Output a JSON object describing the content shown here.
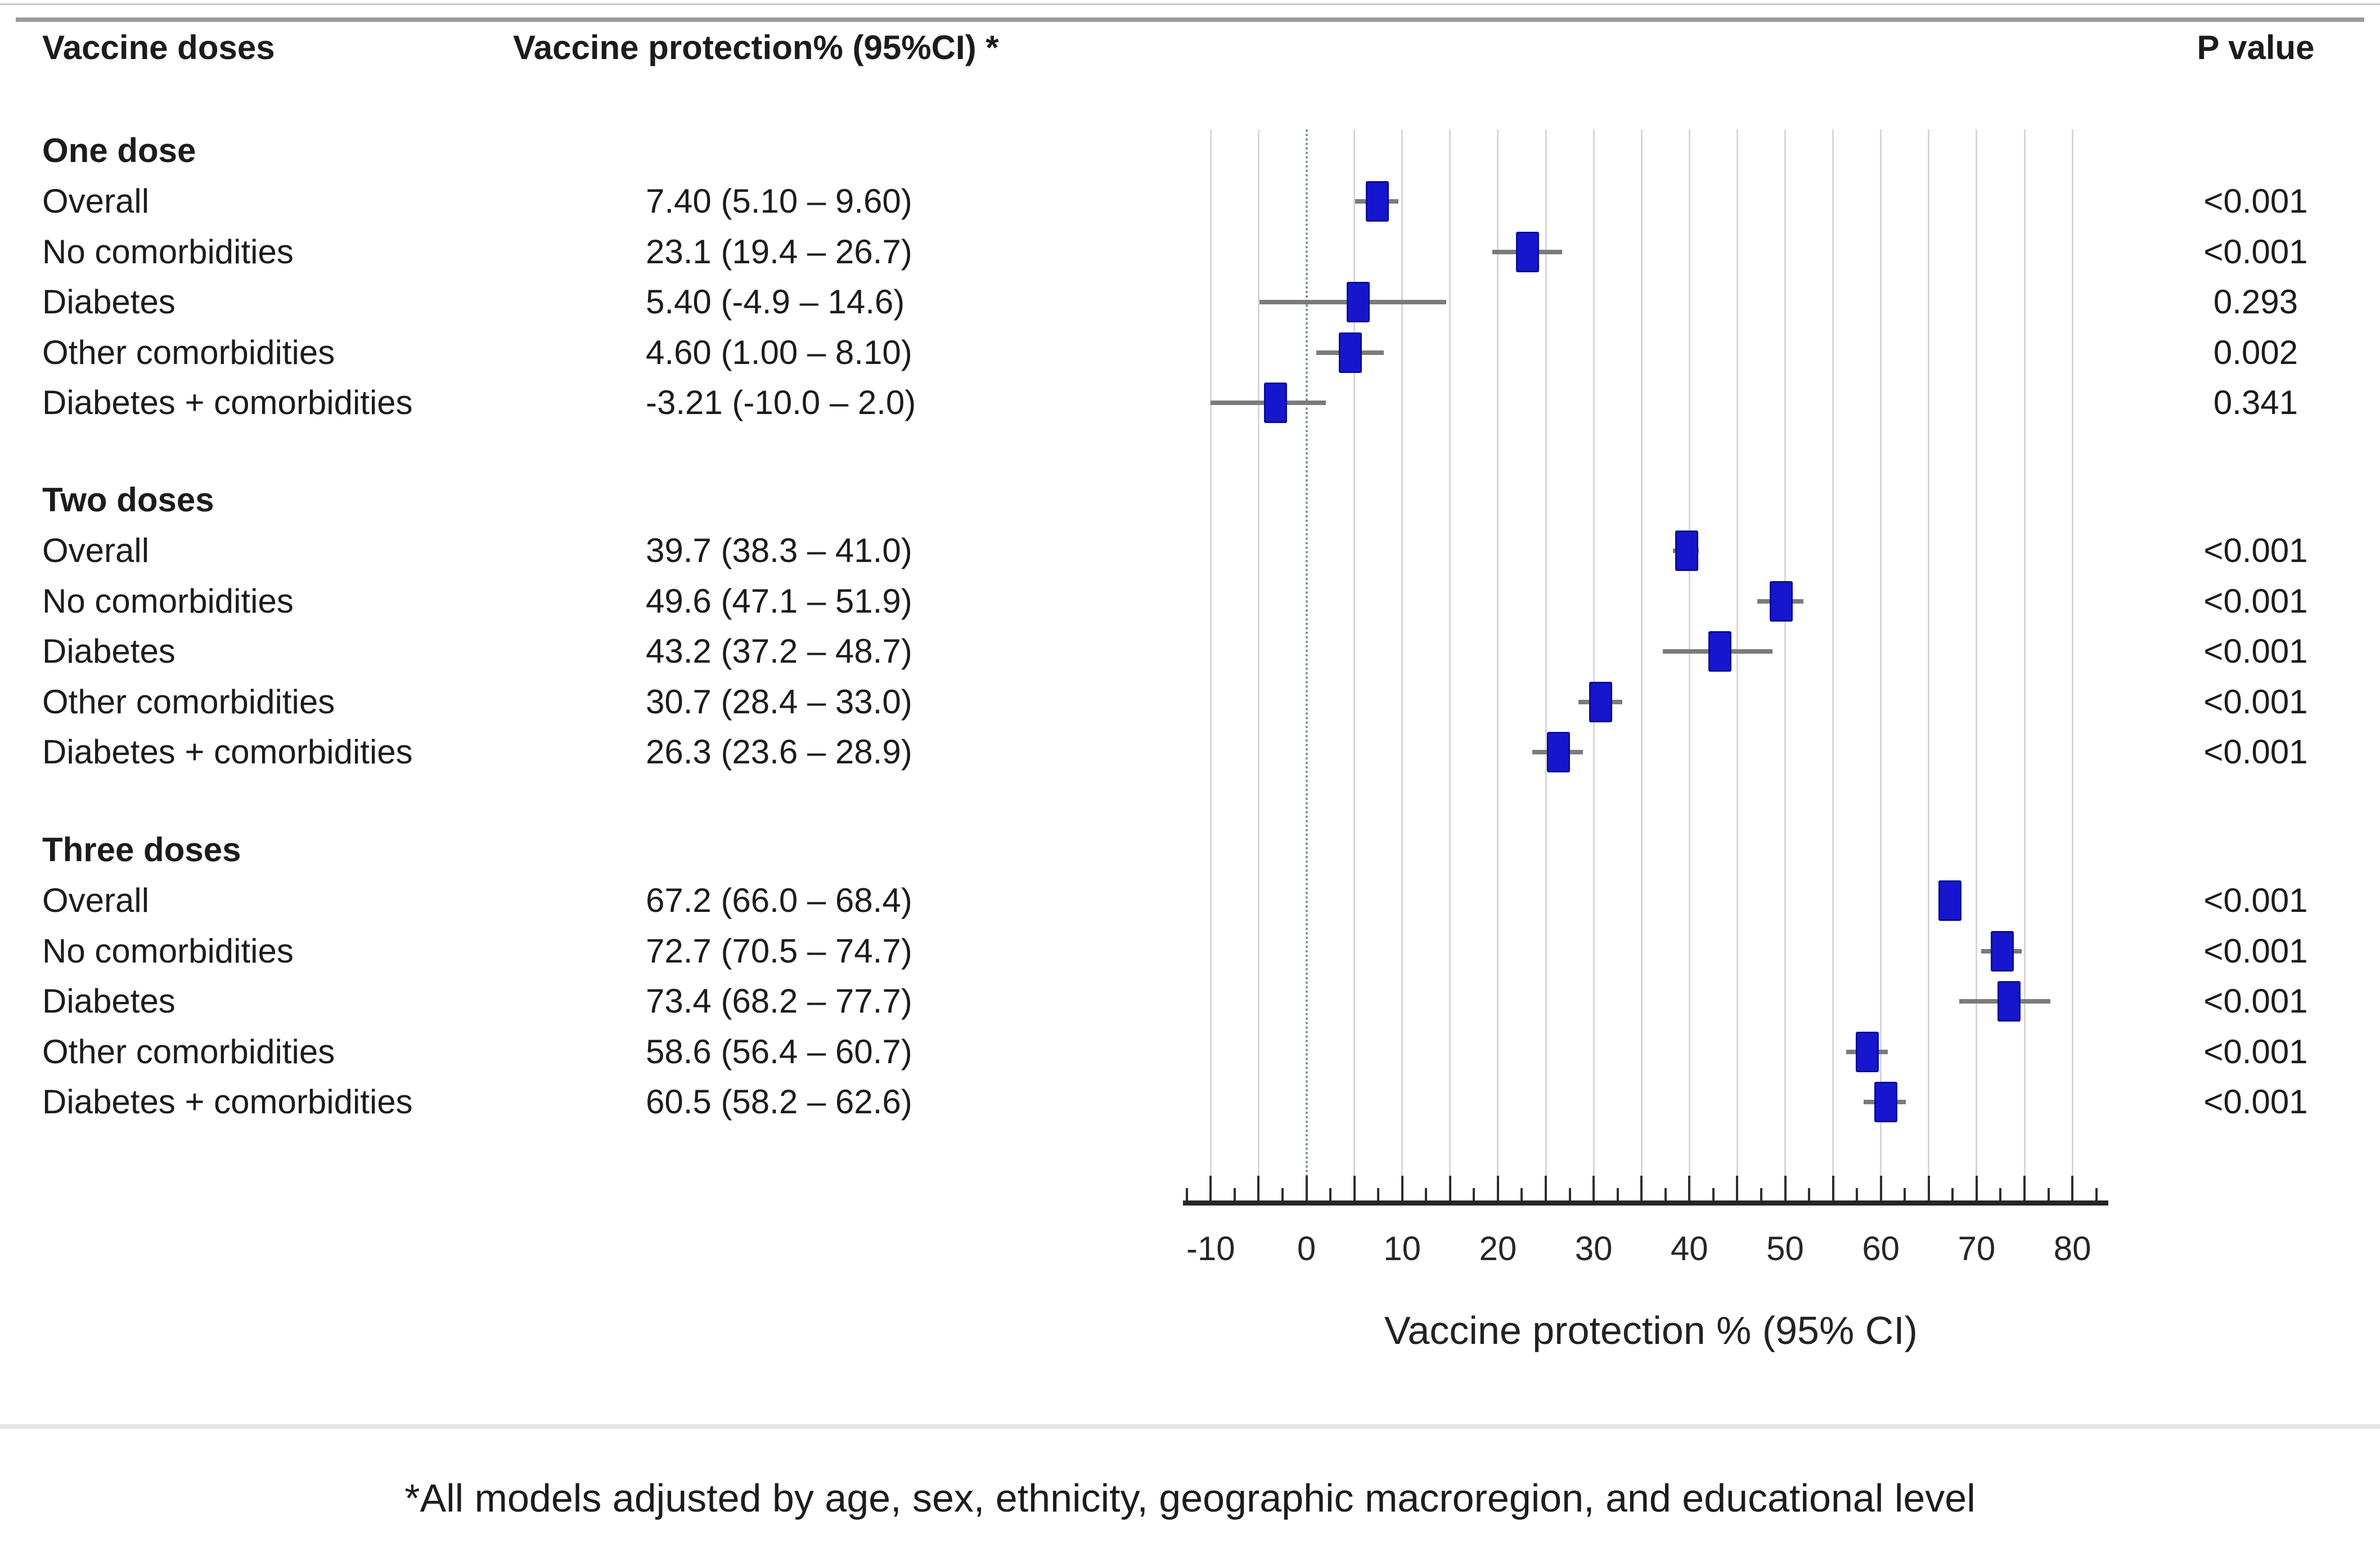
{
  "header": {
    "col_doses": "Vaccine doses",
    "col_protection": "Vaccine protection% (95%CI) *",
    "col_p": "P value"
  },
  "footnote": "*All models adjusted by age, sex, ethnicity, geographic macroregion, and educational level",
  "chart_data": {
    "type": "scatter",
    "subtype": "forest-plot",
    "xlabel": "Vaccine protection %  (95% CI)",
    "x_domain": [
      -12.5,
      82.5
    ],
    "x_ticks": [
      -10,
      0,
      10,
      20,
      30,
      40,
      50,
      60,
      70,
      80
    ],
    "x_minor_tick_step": 2.5,
    "gridline_step": 5,
    "reference_line_x": 0,
    "grid": true,
    "legend": "none",
    "colors": {
      "marker": "#1616cf",
      "marker_border": "#0c0c96",
      "ci_line": "#7b7b7b",
      "reference_line": "#6c8c8c",
      "gridline": "#d7d7d7",
      "axis": "#262626"
    },
    "groups": [
      {
        "label": "One dose",
        "rows": [
          {
            "label": "Overall",
            "value_text": "7.40 (5.10 – 9.60)",
            "estimate": 7.4,
            "ci_low": 5.1,
            "ci_high": 9.6,
            "p_value": "<0.001"
          },
          {
            "label": "No comorbidities",
            "value_text": "23.1 (19.4 – 26.7)",
            "estimate": 23.1,
            "ci_low": 19.4,
            "ci_high": 26.7,
            "p_value": "<0.001"
          },
          {
            "label": "Diabetes",
            "value_text": "5.40 (-4.9 – 14.6)",
            "estimate": 5.4,
            "ci_low": -4.9,
            "ci_high": 14.6,
            "p_value": "0.293"
          },
          {
            "label": "Other comorbidities",
            "value_text": "4.60 (1.00 – 8.10)",
            "estimate": 4.6,
            "ci_low": 1.0,
            "ci_high": 8.1,
            "p_value": "0.002"
          },
          {
            "label": "Diabetes + comorbidities",
            "value_text": "-3.21 (-10.0 – 2.0)",
            "estimate": -3.21,
            "ci_low": -10.0,
            "ci_high": 2.0,
            "p_value": "0.341"
          }
        ]
      },
      {
        "label": "Two doses",
        "rows": [
          {
            "label": "Overall",
            "value_text": "39.7 (38.3 – 41.0)",
            "estimate": 39.7,
            "ci_low": 38.3,
            "ci_high": 41.0,
            "p_value": "<0.001"
          },
          {
            "label": "No comorbidities",
            "value_text": "49.6 (47.1 – 51.9)",
            "estimate": 49.6,
            "ci_low": 47.1,
            "ci_high": 51.9,
            "p_value": "<0.001"
          },
          {
            "label": "Diabetes",
            "value_text": "43.2 (37.2 – 48.7)",
            "estimate": 43.2,
            "ci_low": 37.2,
            "ci_high": 48.7,
            "p_value": "<0.001"
          },
          {
            "label": "Other comorbidities",
            "value_text": "30.7 (28.4 – 33.0)",
            "estimate": 30.7,
            "ci_low": 28.4,
            "ci_high": 33.0,
            "p_value": "<0.001"
          },
          {
            "label": "Diabetes + comorbidities",
            "value_text": "26.3 (23.6 – 28.9)",
            "estimate": 26.3,
            "ci_low": 23.6,
            "ci_high": 28.9,
            "p_value": "<0.001"
          }
        ]
      },
      {
        "label": "Three doses",
        "rows": [
          {
            "label": "Overall",
            "value_text": "67.2 (66.0 – 68.4)",
            "estimate": 67.2,
            "ci_low": 66.0,
            "ci_high": 68.4,
            "p_value": "<0.001"
          },
          {
            "label": "No comorbidities",
            "value_text": "72.7 (70.5 – 74.7)",
            "estimate": 72.7,
            "ci_low": 70.5,
            "ci_high": 74.7,
            "p_value": "<0.001"
          },
          {
            "label": "Diabetes",
            "value_text": "73.4 (68.2 – 77.7)",
            "estimate": 73.4,
            "ci_low": 68.2,
            "ci_high": 77.7,
            "p_value": "<0.001"
          },
          {
            "label": "Other comorbidities",
            "value_text": "58.6 (56.4 – 60.7)",
            "estimate": 58.6,
            "ci_low": 56.4,
            "ci_high": 60.7,
            "p_value": "<0.001"
          },
          {
            "label": "Diabetes + comorbidities",
            "value_text": "60.5 (58.2 – 62.6)",
            "estimate": 60.5,
            "ci_low": 58.2,
            "ci_high": 62.6,
            "p_value": "<0.001"
          }
        ]
      }
    ]
  }
}
